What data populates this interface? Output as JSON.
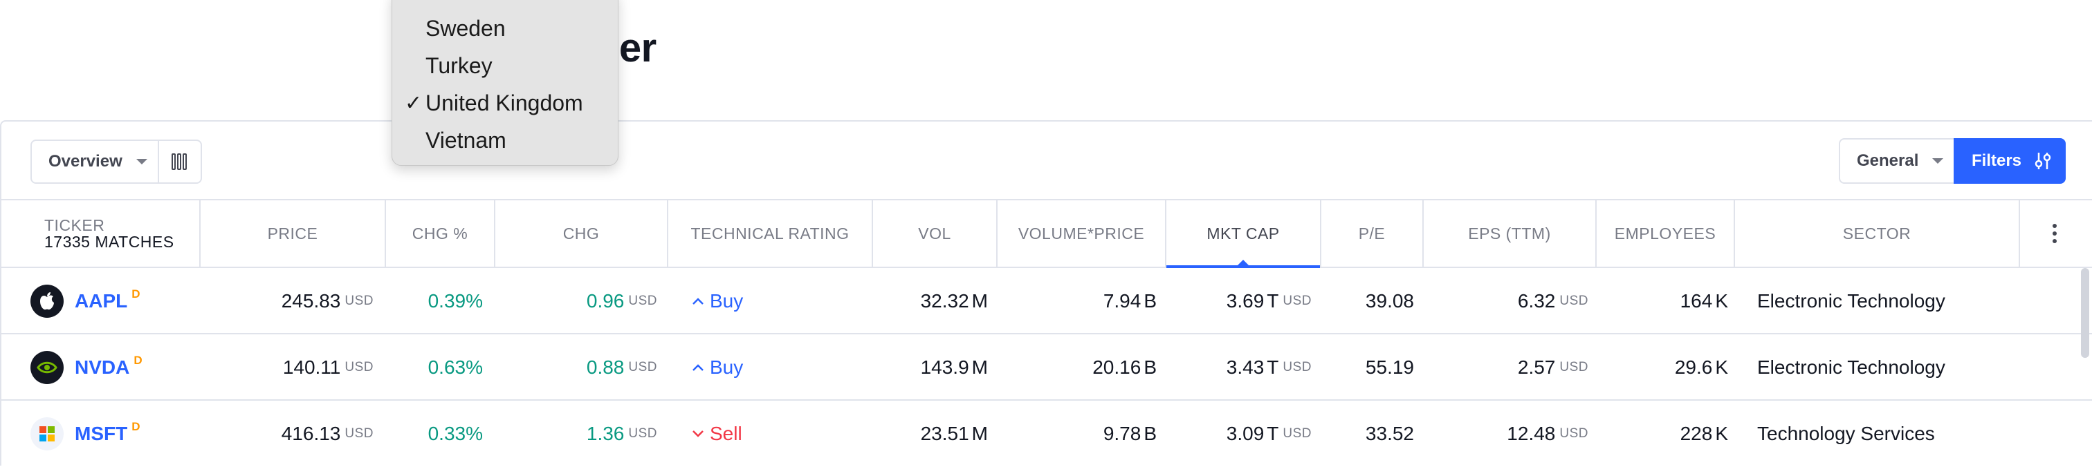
{
  "page": {
    "title": "Stock Screener",
    "visible_title_fragment": "ner"
  },
  "toolbar": {
    "view_select": "Overview",
    "column_settings_icon": "columns-icon",
    "general_select": "General",
    "filters_label": "Filters"
  },
  "dropdown": {
    "options": [
      {
        "label": "Sweden",
        "checked": false
      },
      {
        "label": "Turkey",
        "checked": false
      },
      {
        "label": "United Kingdom",
        "checked": true
      },
      {
        "label": "Vietnam",
        "checked": false
      }
    ],
    "check_mark": "✓"
  },
  "table": {
    "headers": {
      "ticker": "TICKER",
      "matches": "17335 MATCHES",
      "price": "PRICE",
      "chg_pct": "CHG %",
      "chg": "CHG",
      "technical_rating": "TECHNICAL RATING",
      "vol": "VOL",
      "volume_price": "VOLUME*PRICE",
      "mkt_cap": "MKT CAP",
      "pe": "P/E",
      "eps": "EPS (TTM)",
      "employees": "EMPLOYEES",
      "sector": "SECTOR"
    },
    "sorted_column": "MKT CAP",
    "rows": [
      {
        "symbol": "AAPL",
        "badge": "D",
        "price": "245.83",
        "price_unit": "USD",
        "chg_pct": "0.39%",
        "chg": "0.96",
        "chg_unit": "USD",
        "rating": "Buy",
        "rating_icon": "chevron-up-icon",
        "vol": "32.32",
        "vol_unit": "M",
        "volume_price": "7.94",
        "volume_price_unit": "B",
        "mkt_cap": "3.69",
        "mkt_cap_mag": "T",
        "mkt_cap_unit": "USD",
        "pe": "39.08",
        "eps": "6.32",
        "eps_unit": "USD",
        "employees": "164",
        "employees_unit": "K",
        "sector": "Electronic Technology",
        "logo": "apple-logo-icon"
      },
      {
        "symbol": "NVDA",
        "badge": "D",
        "price": "140.11",
        "price_unit": "USD",
        "chg_pct": "0.63%",
        "chg": "0.88",
        "chg_unit": "USD",
        "rating": "Buy",
        "rating_icon": "chevron-up-icon",
        "vol": "143.9",
        "vol_unit": "M",
        "volume_price": "20.16",
        "volume_price_unit": "B",
        "mkt_cap": "3.43",
        "mkt_cap_mag": "T",
        "mkt_cap_unit": "USD",
        "pe": "55.19",
        "eps": "2.57",
        "eps_unit": "USD",
        "employees": "29.6",
        "employees_unit": "K",
        "sector": "Electronic Technology",
        "logo": "nvidia-logo-icon"
      },
      {
        "symbol": "MSFT",
        "badge": "D",
        "price": "416.13",
        "price_unit": "USD",
        "chg_pct": "0.33%",
        "chg": "1.36",
        "chg_unit": "USD",
        "rating": "Sell",
        "rating_icon": "chevron-down-icon",
        "vol": "23.51",
        "vol_unit": "M",
        "volume_price": "9.78",
        "volume_price_unit": "B",
        "mkt_cap": "3.09",
        "mkt_cap_mag": "T",
        "mkt_cap_unit": "USD",
        "pe": "33.52",
        "eps": "12.48",
        "eps_unit": "USD",
        "employees": "228",
        "employees_unit": "K",
        "sector": "Technology Services",
        "logo": "microsoft-logo-icon"
      }
    ]
  },
  "colors": {
    "accent": "#2962ff",
    "positive": "#089981",
    "negative": "#f23645",
    "badge": "#ff9800"
  }
}
